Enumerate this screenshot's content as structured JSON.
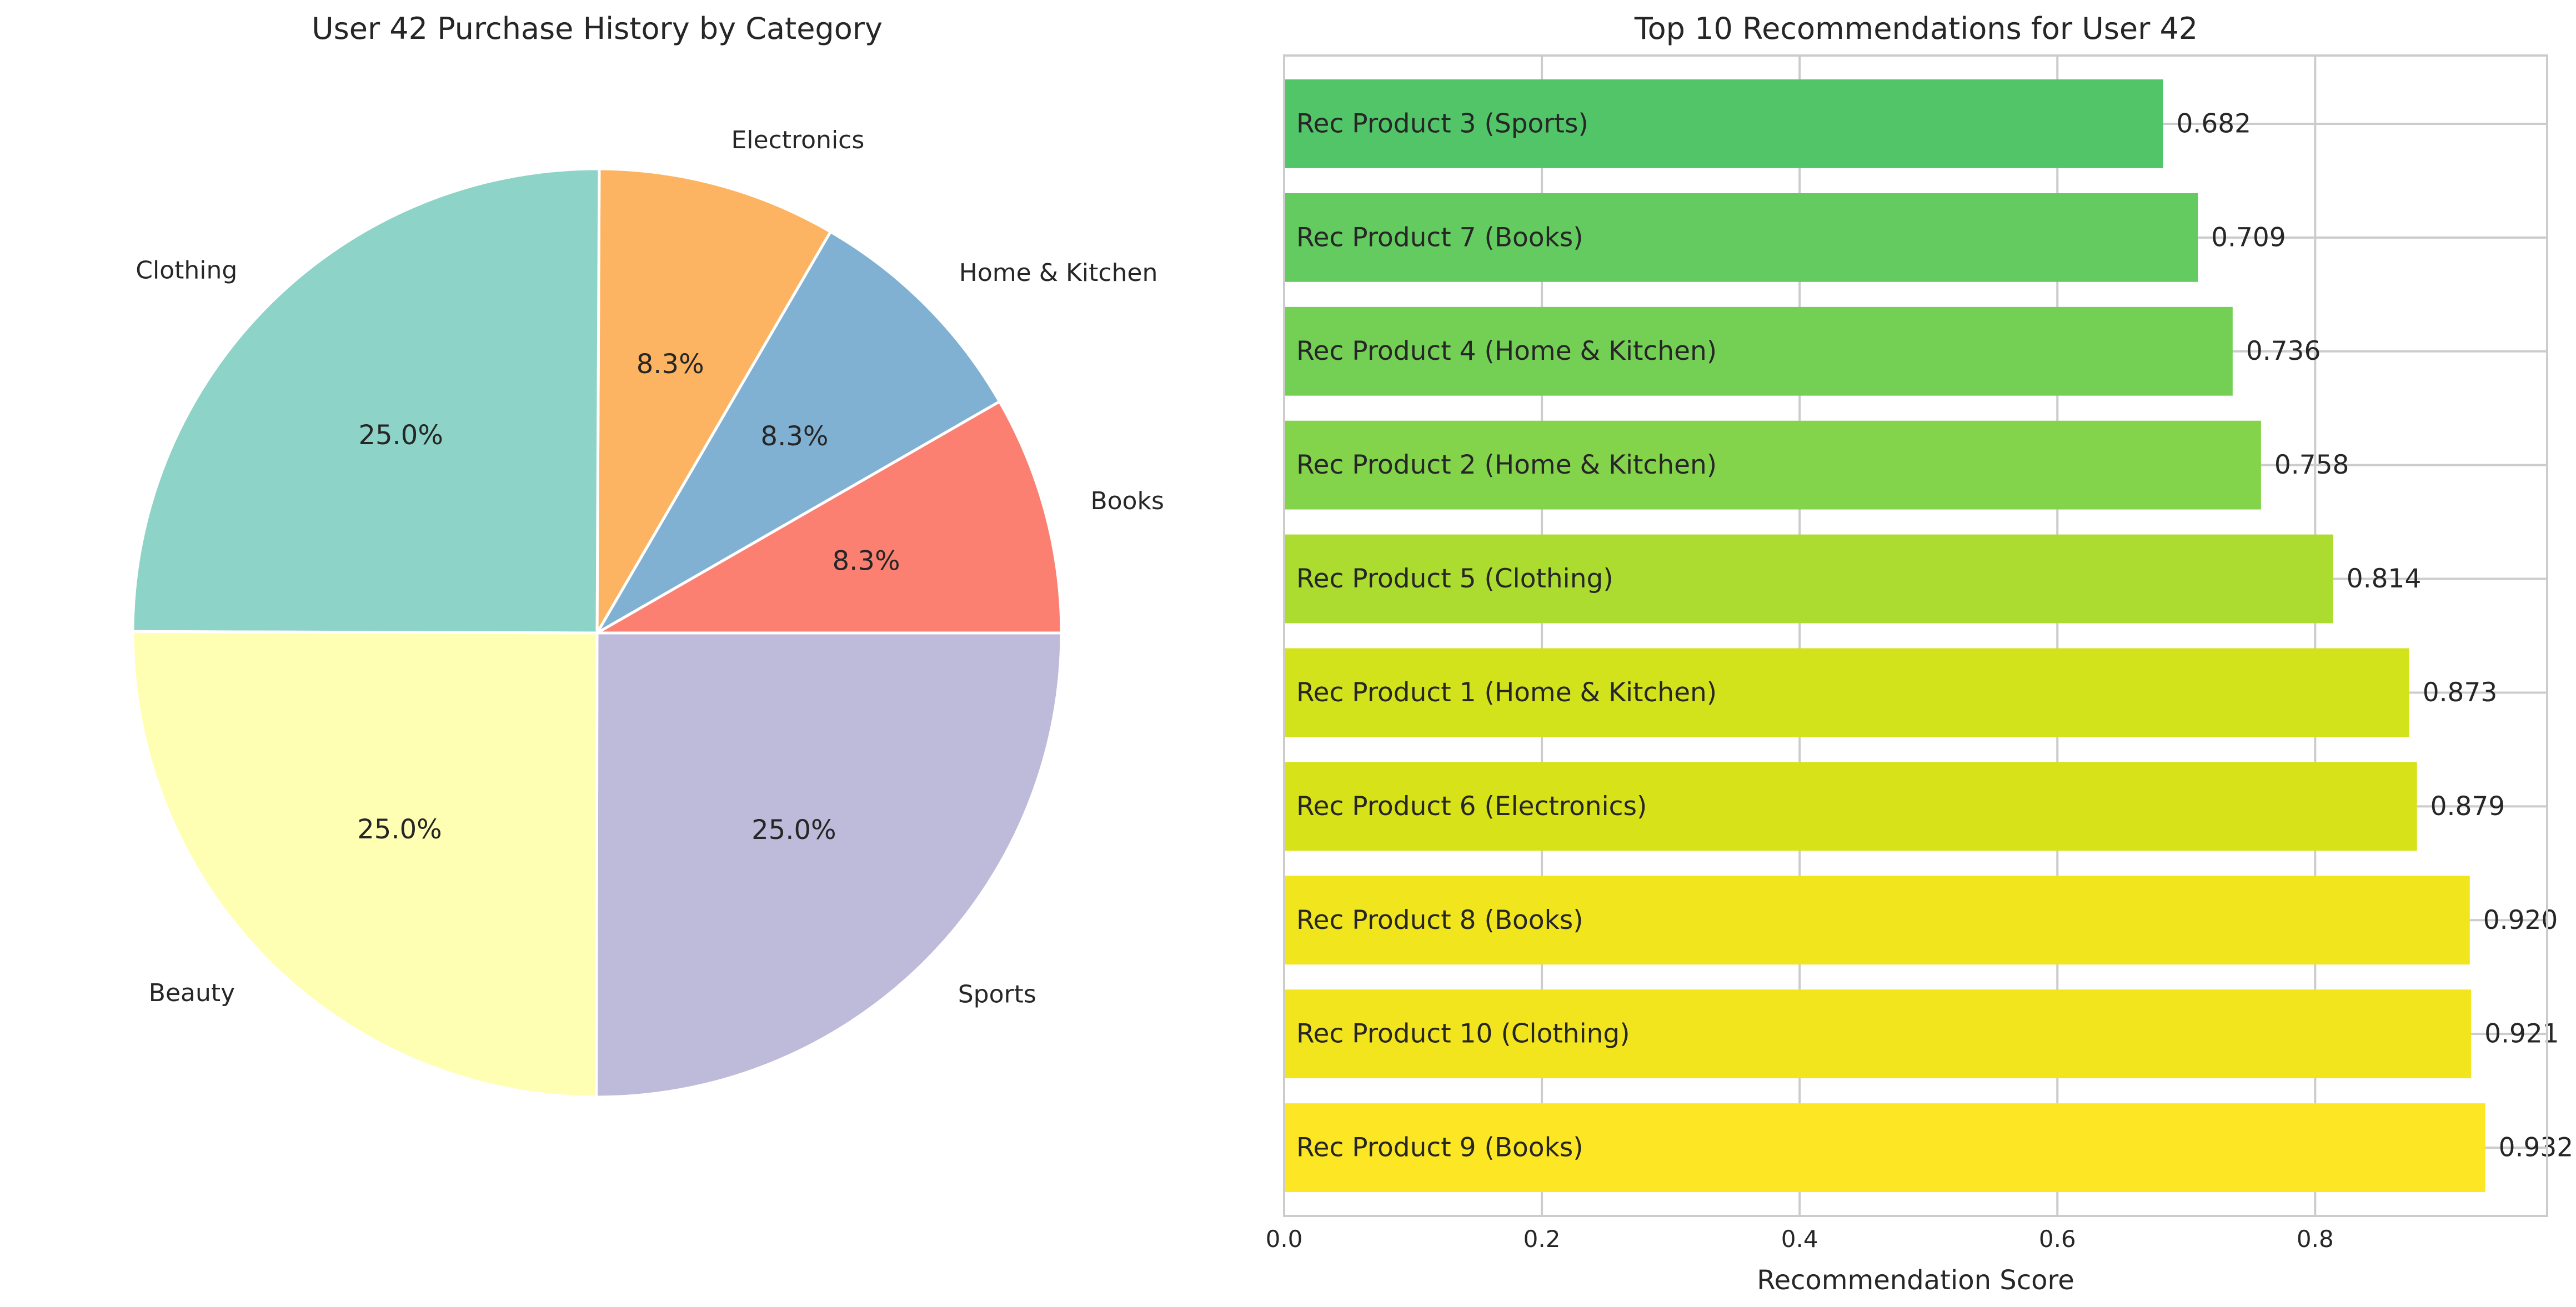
{
  "chart_data": [
    {
      "type": "pie",
      "title": "User 42 Purchase History by Category",
      "slices": [
        {
          "label": "Books",
          "value": 8.3,
          "pct_label": "8.3%",
          "color": "#fb8072"
        },
        {
          "label": "Home & Kitchen",
          "value": 8.3,
          "pct_label": "8.3%",
          "color": "#80b1d3"
        },
        {
          "label": "Electronics",
          "value": 8.3,
          "pct_label": "8.3%",
          "color": "#fdb462"
        },
        {
          "label": "Clothing",
          "value": 25.0,
          "pct_label": "25.0%",
          "color": "#8dd3c7"
        },
        {
          "label": "Beauty",
          "value": 25.0,
          "pct_label": "25.0%",
          "color": "#ffffb3"
        },
        {
          "label": "Sports",
          "value": 25.0,
          "pct_label": "25.0%",
          "color": "#bebada"
        }
      ],
      "start_angle_deg": 0,
      "direction": "counterclockwise"
    },
    {
      "type": "bar",
      "orientation": "horizontal",
      "title": "Top 10 Recommendations for User 42",
      "xlabel": "Recommendation Score",
      "ylabel": "",
      "xlim": [
        0,
        0.98
      ],
      "xticks": [
        "0.0",
        "0.2",
        "0.4",
        "0.6",
        "0.8"
      ],
      "grid": true,
      "bars": [
        {
          "label": "Rec Product 9 (Books)",
          "value": 0.932,
          "value_label": "0.932",
          "color": "#fde725"
        },
        {
          "label": "Rec Product 10 (Clothing)",
          "value": 0.921,
          "value_label": "0.921",
          "color": "#f3e51d"
        },
        {
          "label": "Rec Product 8 (Books)",
          "value": 0.92,
          "value_label": "0.920",
          "color": "#f1e51d"
        },
        {
          "label": "Rec Product 6 (Electronics)",
          "value": 0.879,
          "value_label": "0.879",
          "color": "#d8e219"
        },
        {
          "label": "Rec Product 1 (Home & Kitchen)",
          "value": 0.873,
          "value_label": "0.873",
          "color": "#d2e21b"
        },
        {
          "label": "Rec Product 5 (Clothing)",
          "value": 0.814,
          "value_label": "0.814",
          "color": "#addc30"
        },
        {
          "label": "Rec Product 2 (Home & Kitchen)",
          "value": 0.758,
          "value_label": "0.758",
          "color": "#84d44b"
        },
        {
          "label": "Rec Product 4 (Home & Kitchen)",
          "value": 0.736,
          "value_label": "0.736",
          "color": "#74d055"
        },
        {
          "label": "Rec Product 7 (Books)",
          "value": 0.709,
          "value_label": "0.709",
          "color": "#63cb5f"
        },
        {
          "label": "Rec Product 3 (Sports)",
          "value": 0.682,
          "value_label": "0.682",
          "color": "#52c569"
        }
      ]
    }
  ]
}
